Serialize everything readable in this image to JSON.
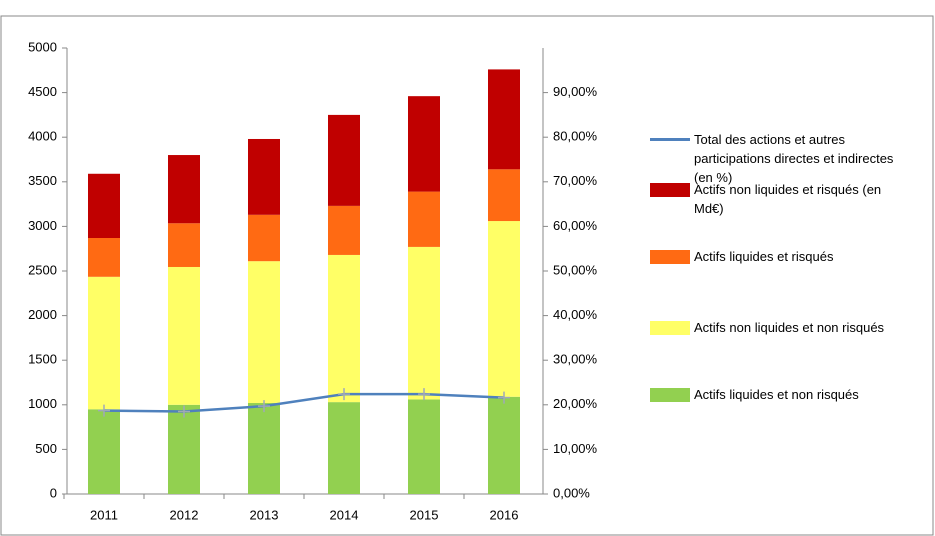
{
  "chart_data": {
    "type": "bar",
    "stacked": true,
    "categories": [
      "2011",
      "2012",
      "2013",
      "2014",
      "2015",
      "2016"
    ],
    "ylim": [
      0,
      5000
    ],
    "yticks": [
      0,
      500,
      1000,
      1500,
      2000,
      2500,
      3000,
      3500,
      4000,
      4500,
      5000
    ],
    "y2lim": [
      0,
      100
    ],
    "y2ticks": [
      {
        "value": 0,
        "label": "0,00%"
      },
      {
        "value": 10,
        "label": "10,00%"
      },
      {
        "value": 20,
        "label": "20,00%"
      },
      {
        "value": 30,
        "label": "30,00%"
      },
      {
        "value": 40,
        "label": "40,00%"
      },
      {
        "value": 50,
        "label": "50,00%"
      },
      {
        "value": 60,
        "label": "60,00%"
      },
      {
        "value": 70,
        "label": "70,00%"
      },
      {
        "value": 80,
        "label": "80,00%"
      },
      {
        "value": 90,
        "label": "90,00%"
      }
    ],
    "grid": false,
    "legend": "right",
    "series": [
      {
        "name": "Actifs liquides et non risqués",
        "color": "#92d050",
        "values": [
          950,
          1000,
          1020,
          1030,
          1060,
          1090
        ]
      },
      {
        "name": "Actifs non liquides et non risqués",
        "color": "#ffff66",
        "values": [
          1485,
          1545,
          1590,
          1650,
          1710,
          1970
        ]
      },
      {
        "name": "Actifs liquides et risqués",
        "color": "#ff6a13",
        "values": [
          435,
          490,
          520,
          550,
          620,
          580
        ]
      },
      {
        "name": "Actifs non liquides et risqués (en Md€)",
        "color": "#c00000",
        "values": [
          720,
          765,
          850,
          1020,
          1070,
          1120
        ]
      },
      {
        "name": "Total des actions et autres participations directes et indirectes (en %)",
        "color": "#4f81bd",
        "type": "line",
        "axis": "y2",
        "values": [
          18.7,
          18.5,
          19.7,
          22.4,
          22.4,
          21.6
        ]
      }
    ]
  }
}
